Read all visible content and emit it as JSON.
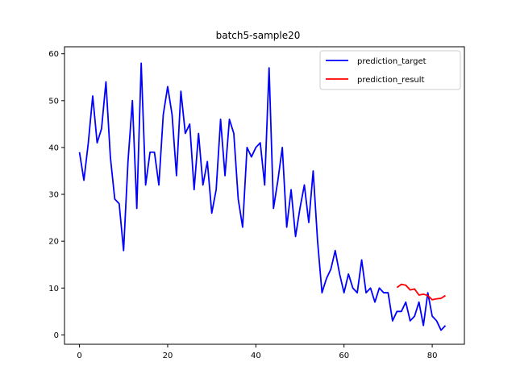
{
  "chart_data": {
    "type": "line",
    "title": "batch5-sample20",
    "xlabel": "",
    "ylabel": "",
    "xlim": [
      -3.4,
      87.3
    ],
    "ylim": [
      -2,
      61.5
    ],
    "xticks": [
      0,
      20,
      40,
      60,
      80
    ],
    "yticks": [
      0,
      10,
      20,
      30,
      40,
      50,
      60
    ],
    "grid": false,
    "legend_position": "top-right",
    "series": [
      {
        "name": "prediction_target",
        "color": "#0000ff",
        "x_start": 0,
        "values": [
          39,
          33,
          41,
          51,
          41,
          44,
          54,
          38,
          29,
          28,
          18,
          37,
          50,
          27,
          58,
          32,
          39,
          39,
          32,
          47,
          53,
          47,
          34,
          52,
          43,
          45,
          31,
          43,
          32,
          37,
          26,
          31,
          46,
          34,
          46,
          43,
          29,
          23,
          40,
          38,
          40,
          41,
          32,
          57,
          27,
          33,
          40,
          23,
          31,
          21,
          27,
          32,
          24,
          35,
          20,
          9,
          12,
          14,
          18,
          13,
          9,
          13,
          10,
          9,
          16,
          9,
          10,
          7,
          10,
          9,
          9,
          3,
          5,
          5,
          7,
          3,
          4,
          7,
          2,
          9,
          4,
          3,
          1,
          2
        ]
      },
      {
        "name": "prediction_result",
        "color": "#ff0000",
        "x_start": 72,
        "values": [
          10.1,
          10.8,
          10.6,
          9.6,
          9.8,
          8.5,
          8.7,
          8.4,
          7.5,
          7.7,
          7.8,
          8.4
        ]
      }
    ]
  }
}
